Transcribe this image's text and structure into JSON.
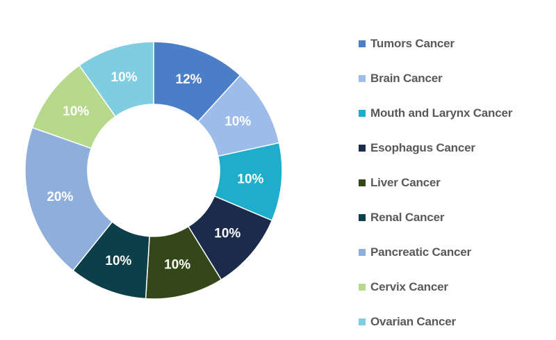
{
  "chart_data": {
    "type": "pie",
    "donut": true,
    "title": "",
    "legend_placement": "right",
    "slices": [
      {
        "name": "Tumors Cancer",
        "value": 12,
        "label": "12%",
        "color": "#4a7ec7"
      },
      {
        "name": "Brain Cancer",
        "value": 10,
        "label": "10%",
        "color": "#9dbce9"
      },
      {
        "name": "Mouth and Larynx Cancer",
        "value": 10,
        "label": "10%",
        "color": "#1eaecb"
      },
      {
        "name": "Esophagus Cancer",
        "value": 10,
        "label": "10%",
        "color": "#1b2b4b"
      },
      {
        "name": "Liver Cancer",
        "value": 10,
        "label": "10%",
        "color": "#344718"
      },
      {
        "name": "Renal Cancer",
        "value": 10,
        "label": "10%",
        "color": "#0d3f4a"
      },
      {
        "name": "Pancreatic Cancer",
        "value": 20,
        "label": "20%",
        "color": "#8eaedc"
      },
      {
        "name": "Cervix Cancer",
        "value": 10,
        "label": "10%",
        "color": "#b6d98c"
      },
      {
        "name": "Ovarian Cancer",
        "value": 10,
        "label": "10%",
        "color": "#7fcde0"
      }
    ]
  }
}
